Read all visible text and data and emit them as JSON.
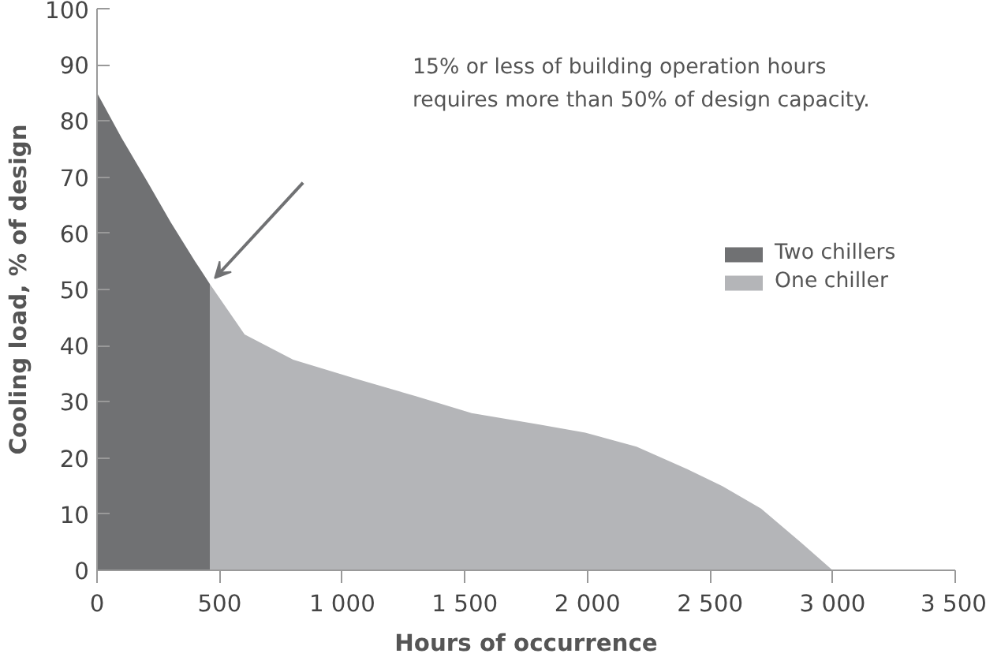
{
  "chart_data": {
    "type": "area",
    "xlabel": "Hours of occurrence",
    "ylabel": "Cooling load, % of design",
    "xlim": [
      0,
      3500
    ],
    "ylim": [
      0,
      100
    ],
    "xticks": [
      0,
      500,
      {
        "value": 1000,
        "label": "1 000"
      },
      {
        "value": 1500,
        "label": "1 500"
      },
      {
        "value": 2000,
        "label": "2 000"
      },
      {
        "value": 2500,
        "label": "2 500"
      },
      {
        "value": 3000,
        "label": "3 000"
      },
      {
        "value": 3500,
        "label": "3 500"
      }
    ],
    "yticks": [
      0,
      10,
      20,
      30,
      40,
      50,
      60,
      70,
      80,
      90,
      100
    ],
    "series": [
      {
        "name": "Two chillers",
        "color": "#707173",
        "x": [
          0,
          100,
          208,
          300,
          400,
          460
        ],
        "values": [
          85,
          77,
          69,
          62,
          55,
          51
        ]
      },
      {
        "name": "One chiller",
        "color": "#b4b5b8",
        "x": [
          460,
          602,
          800,
          1065,
          1300,
          1528,
          1800,
          1991,
          2200,
          2407,
          2550,
          2708,
          2870,
          3000
        ],
        "values": [
          51,
          42,
          37.5,
          34,
          31,
          28,
          26,
          24.5,
          22,
          18,
          15,
          11,
          5,
          0
        ]
      }
    ],
    "annotations": [
      "15% or less of building operation hours\nrequires more than 50% of design capacity."
    ],
    "legend": "right",
    "grid": false
  }
}
